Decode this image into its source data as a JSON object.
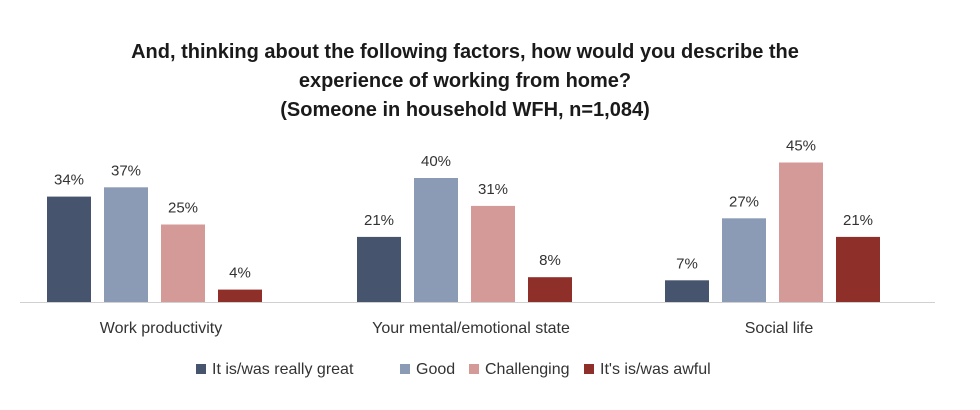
{
  "chart_data": {
    "type": "bar",
    "title": [
      "And, thinking about the following factors, how would you describe the",
      "experience of working from home?",
      "(Someone in household WFH, n=1,084)"
    ],
    "categories": [
      "Work productivity",
      "Your mental/emotional state",
      "Social life"
    ],
    "series": [
      {
        "name": "It is/was really great",
        "color": "#46546e",
        "values": [
          34,
          21,
          7
        ]
      },
      {
        "name": "Good",
        "color": "#8c9bb5",
        "values": [
          37,
          40,
          27
        ]
      },
      {
        "name": "Challenging",
        "color": "#d49a98",
        "values": [
          25,
          31,
          45
        ]
      },
      {
        "name": "It's is/was awful",
        "color": "#8e2f2a",
        "values": [
          4,
          8,
          21
        ]
      }
    ],
    "value_suffix": "%",
    "ylim": [
      0,
      45
    ],
    "legend_position": "bottom",
    "grid": false
  }
}
